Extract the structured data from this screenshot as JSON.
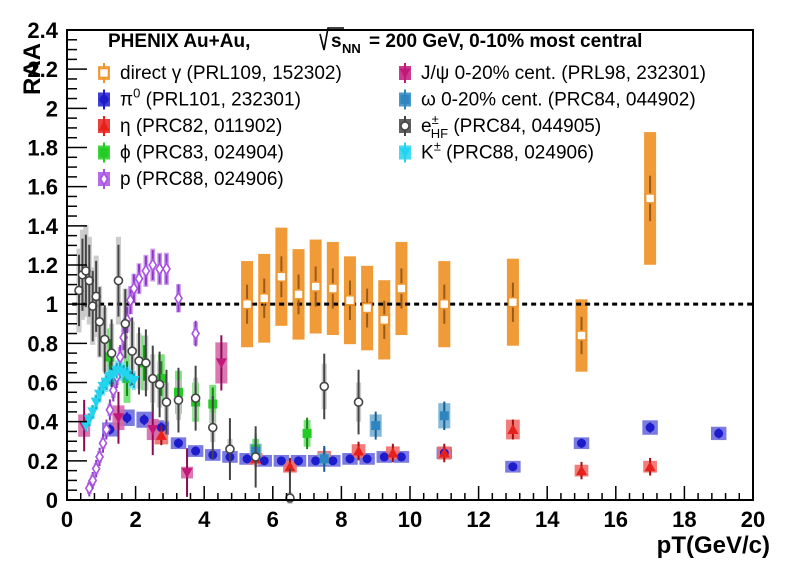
{
  "chart_data": {
    "type": "scatter",
    "title": "PHENIX   Au+Au,     √sNN = 200 GeV, 0-10% most central",
    "xlabel": "pT(GeV/c)",
    "ylabel": "RAA",
    "xlim": [
      0,
      20
    ],
    "ylim": [
      0,
      2.4
    ],
    "xticks": [
      "0",
      "2",
      "4",
      "6",
      "8",
      "10",
      "12",
      "14",
      "16",
      "18",
      "20"
    ],
    "yticks": [
      "0",
      "0.2",
      "0.4",
      "0.6",
      "0.8",
      "1",
      "1.2",
      "1.4",
      "1.6",
      "1.8",
      "2",
      "2.2",
      "2.4"
    ],
    "reference_line": 1,
    "legend_placement": "top",
    "series": [
      {
        "name": "direct γ (PRL109, 152302)",
        "color": "#f0962d",
        "marker": "open-square",
        "x": [
          5.25,
          5.75,
          6.25,
          6.75,
          7.25,
          7.75,
          8.25,
          8.75,
          9.25,
          9.75,
          11,
          13,
          15,
          17
        ],
        "y": [
          1.0,
          1.03,
          1.14,
          1.05,
          1.09,
          1.08,
          1.02,
          0.98,
          0.92,
          1.08,
          1.0,
          1.01,
          0.84,
          1.54
        ]
      },
      {
        "name": "π0 (PRL101, 232301)",
        "color": "#1c1ccc",
        "marker": "filled-circle",
        "x": [
          1.25,
          1.75,
          2.25,
          2.75,
          3.25,
          3.75,
          4.25,
          4.75,
          5.25,
          5.75,
          6.25,
          6.75,
          7.25,
          7.75,
          8.25,
          8.75,
          9.25,
          9.75,
          11,
          13,
          15,
          17,
          19
        ],
        "y": [
          0.36,
          0.42,
          0.41,
          0.37,
          0.29,
          0.25,
          0.23,
          0.22,
          0.21,
          0.2,
          0.2,
          0.2,
          0.2,
          0.2,
          0.21,
          0.21,
          0.22,
          0.22,
          0.24,
          0.17,
          0.29,
          0.37,
          0.34
        ]
      },
      {
        "name": "η (PRC82, 011902)",
        "color": "#e8201c",
        "marker": "filled-triangle",
        "x": [
          2.75,
          5.5,
          6.5,
          7.5,
          8.5,
          9.5,
          11,
          13,
          15,
          17
        ],
        "y": [
          0.33,
          0.21,
          0.17,
          0.22,
          0.25,
          0.24,
          0.24,
          0.36,
          0.15,
          0.17
        ]
      },
      {
        "name": "ϕ (PRC83, 024904)",
        "color": "#22cc22",
        "marker": "filled-square",
        "x": [
          1.25,
          1.75,
          2.25,
          2.75,
          3.25,
          3.75,
          4.25,
          5.5,
          7.0
        ],
        "y": [
          0.73,
          0.62,
          0.7,
          0.62,
          0.55,
          0.5,
          0.49,
          0.26,
          0.34
        ]
      },
      {
        "name": "p (PRC88, 024906)",
        "color": "#a952e3",
        "marker": "open-diamond",
        "x": [
          0.65,
          0.75,
          0.85,
          0.95,
          1.05,
          1.15,
          1.25,
          1.35,
          1.45,
          1.55,
          1.65,
          1.75,
          1.85,
          1.95,
          2.1,
          2.3,
          2.5,
          2.7,
          2.9,
          3.25,
          3.75
        ],
        "y": [
          0.06,
          0.1,
          0.16,
          0.22,
          0.29,
          0.36,
          0.46,
          0.56,
          0.63,
          0.73,
          0.83,
          0.92,
          1.02,
          1.08,
          1.13,
          1.17,
          1.2,
          1.18,
          1.18,
          1.03,
          0.85
        ]
      },
      {
        "name": "J/ψ 0-20% cent. (PRL98, 232301)",
        "color": "#c2187a",
        "marker": "filled-down-triangle",
        "x": [
          0.5,
          1.5,
          2.5,
          3.5,
          4.5
        ],
        "y": [
          0.38,
          0.42,
          0.36,
          0.14,
          0.7
        ]
      },
      {
        "name": "ω 0-20% cent. (PRC84, 044902)",
        "color": "#2e86c1",
        "marker": "filled-square",
        "x": [
          5.5,
          7.5,
          9.0,
          11.0
        ],
        "y": [
          0.25,
          0.21,
          0.38,
          0.43
        ]
      },
      {
        "name": "e± HF (PRC84, 044905)",
        "color": "#444444",
        "marker": "open-circle",
        "x": [
          0.35,
          0.45,
          0.55,
          0.65,
          0.75,
          0.85,
          0.95,
          1.1,
          1.3,
          1.5,
          1.7,
          1.9,
          2.1,
          2.3,
          2.5,
          2.7,
          2.9,
          3.25,
          3.75,
          4.25,
          4.75,
          5.5,
          6.5,
          7.5,
          8.5
        ],
        "y": [
          1.07,
          1.15,
          1.17,
          1.12,
          0.99,
          1.04,
          0.91,
          0.82,
          0.75,
          1.12,
          0.9,
          0.76,
          0.71,
          0.7,
          0.62,
          0.59,
          0.5,
          0.51,
          0.52,
          0.37,
          0.26,
          0.22,
          0.01,
          0.58,
          0.5
        ]
      },
      {
        "name": "K± (PRC88, 024906)",
        "color": "#22d4f0",
        "marker": "filled-down-triangle",
        "x": [
          0.55,
          0.65,
          0.75,
          0.85,
          0.95,
          1.05,
          1.15,
          1.25,
          1.35,
          1.45,
          1.55,
          1.65,
          1.75,
          1.85,
          1.95
        ],
        "y": [
          0.38,
          0.41,
          0.45,
          0.5,
          0.54,
          0.58,
          0.6,
          0.63,
          0.64,
          0.66,
          0.66,
          0.65,
          0.64,
          0.62,
          0.61
        ]
      }
    ]
  },
  "legend": {
    "header": "PHENIX   Au+Au,",
    "header_energy": "= 200 GeV, 0-10% most central",
    "header_symbol": "s",
    "header_symbol_sub": "NN",
    "left": [
      {
        "base": "direct γ (PRL109, 152302)",
        "color": "#f0962d",
        "marker": "open-square"
      },
      {
        "base": "π",
        "sup": "0",
        "rest": " (PRL101, 232301)",
        "color": "#1c1ccc",
        "marker": "filled-circle"
      },
      {
        "base": "η (PRC82, 011902)",
        "color": "#e8201c",
        "marker": "filled-triangle"
      },
      {
        "base": "ϕ (PRC83, 024904)",
        "color": "#22cc22",
        "marker": "filled-square"
      },
      {
        "base": "p (PRC88, 024906)",
        "color": "#a952e3",
        "marker": "open-diamond"
      }
    ],
    "right": [
      {
        "base": "J/ψ 0-20% cent. (PRL98, 232301)",
        "color": "#c2187a",
        "marker": "filled-down-triangle"
      },
      {
        "base": "ω 0-20% cent. (PRC84, 044902)",
        "color": "#2e86c1",
        "marker": "filled-square"
      },
      {
        "base": "e",
        "sup": "±",
        "sub": "HF",
        "rest": " (PRC84, 044905)",
        "color": "#444444",
        "marker": "open-circle"
      },
      {
        "base": "K",
        "sup": "±",
        "rest": " (PRC88, 024906)",
        "color": "#22d4f0",
        "marker": "filled-down-triangle"
      }
    ]
  }
}
